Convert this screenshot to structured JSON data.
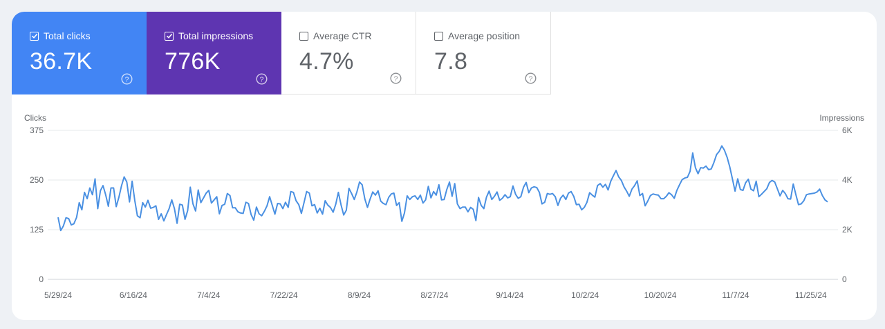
{
  "metrics": [
    {
      "label": "Total clicks",
      "value": "36.7K",
      "checked": true,
      "color": "#4285f4",
      "icon": "help-circle-icon"
    },
    {
      "label": "Total impressions",
      "value": "776K",
      "checked": true,
      "color": "#5e35b1",
      "icon": "help-circle-icon"
    },
    {
      "label": "Average CTR",
      "value": "4.7%",
      "checked": false,
      "icon": "help-circle-icon"
    },
    {
      "label": "Average position",
      "value": "7.8",
      "checked": false,
      "icon": "help-circle-icon"
    }
  ],
  "chart_data": {
    "type": "line",
    "y_left_label": "Clicks",
    "y_right_label": "Impressions",
    "y_left_ticks": [
      "375",
      "250",
      "125",
      "0"
    ],
    "y_right_ticks": [
      "6K",
      "4K",
      "2K",
      "0"
    ],
    "y_left_range": [
      0,
      375
    ],
    "y_right_range": [
      0,
      6000
    ],
    "x_start": "2024-05-29",
    "x_end": "2024-11-29",
    "x_tick_labels": [
      "5/29/24",
      "6/16/24",
      "7/4/24",
      "7/22/24",
      "8/9/24",
      "8/27/24",
      "9/14/24",
      "10/2/24",
      "10/20/24",
      "11/7/24",
      "11/25/24"
    ],
    "grid": true,
    "series": [
      {
        "name": "Total clicks",
        "axis": "left",
        "color": "#4a90e2",
        "values": [
          156,
          123,
          134,
          155,
          153,
          137,
          140,
          156,
          193,
          175,
          219,
          203,
          230,
          213,
          253,
          178,
          223,
          236,
          213,
          184,
          230,
          230,
          183,
          207,
          236,
          258,
          245,
          195,
          247,
          199,
          160,
          155,
          193,
          182,
          199,
          179,
          181,
          185,
          151,
          165,
          147,
          163,
          178,
          200,
          178,
          141,
          189,
          187,
          151,
          173,
          232,
          190,
          172,
          225,
          193,
          205,
          217,
          224,
          192,
          200,
          208,
          165,
          186,
          189,
          216,
          211,
          180,
          180,
          170,
          167,
          166,
          194,
          191,
          163,
          149,
          182,
          165,
          160,
          171,
          185,
          208,
          186,
          164,
          191,
          190,
          178,
          194,
          181,
          221,
          219,
          198,
          188,
          166,
          193,
          221,
          217,
          185,
          188,
          167,
          179,
          164,
          198,
          187,
          181,
          169,
          189,
          219,
          188,
          162,
          174,
          229,
          216,
          201,
          220,
          245,
          238,
          202,
          181,
          202,
          220,
          212,
          223,
          197,
          191,
          188,
          206,
          215,
          217,
          186,
          193,
          146,
          167,
          210,
          201,
          208,
          210,
          201,
          212,
          192,
          200,
          234,
          205,
          221,
          212,
          238,
          200,
          201,
          226,
          245,
          209,
          241,
          190,
          178,
          182,
          182,
          170,
          181,
          176,
          148,
          206,
          186,
          178,
          207,
          222,
          201,
          209,
          220,
          199,
          204,
          213,
          205,
          208,
          235,
          214,
          204,
          208,
          232,
          244,
          218,
          230,
          233,
          231,
          219,
          190,
          194,
          216,
          214,
          216,
          208,
          186,
          204,
          212,
          201,
          217,
          221,
          209,
          188,
          189,
          175,
          181,
          194,
          218,
          212,
          207,
          236,
          241,
          232,
          239,
          225,
          247,
          261,
          274,
          258,
          249,
          233,
          222,
          209,
          227,
          236,
          248,
          211,
          216,
          185,
          197,
          211,
          215,
          213,
          212,
          203,
          203,
          209,
          218,
          213,
          204,
          224,
          238,
          251,
          255,
          257,
          272,
          318,
          281,
          266,
          281,
          280,
          285,
          276,
          278,
          294,
          314,
          322,
          336,
          325,
          307,
          283,
          253,
          222,
          253,
          226,
          224,
          243,
          252,
          227,
          223,
          247,
          208,
          214,
          221,
          228,
          244,
          249,
          245,
          228,
          210,
          224,
          216,
          203,
          202,
          240,
          213,
          188,
          190,
          198,
          213,
          215,
          216,
          217,
          220,
          227,
          211,
          200,
          195
        ]
      }
    ]
  }
}
